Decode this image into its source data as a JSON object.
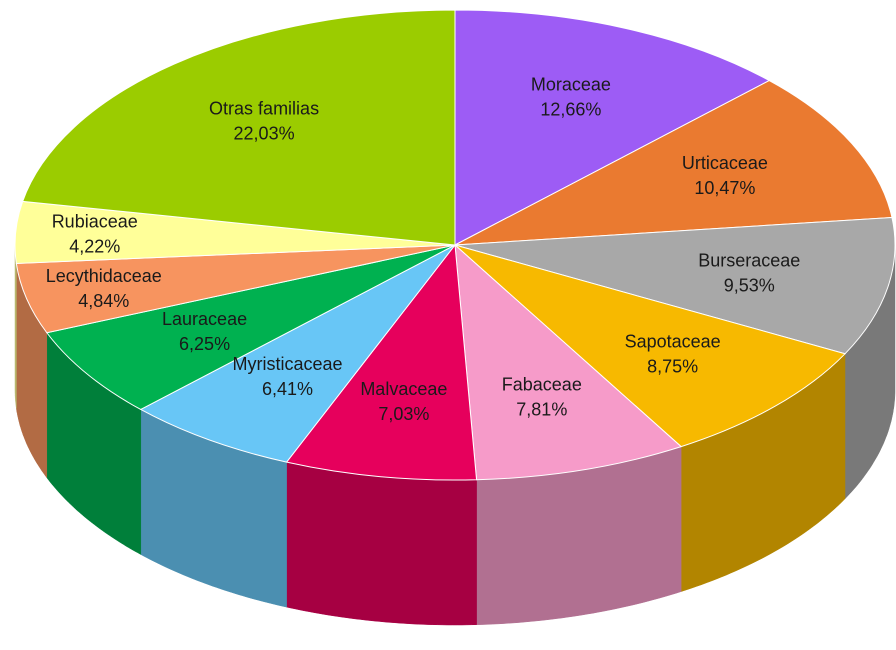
{
  "chart_data": {
    "type": "pie",
    "categories": [
      "Moraceae",
      "Urticaceae",
      "Burseraceae",
      "Sapotaceae",
      "Fabaceae",
      "Malvaceae",
      "Myristicaceae",
      "Lauraceae",
      "Lecythidaceae",
      "Rubiaceae",
      "Otras familias"
    ],
    "values": [
      12.66,
      10.47,
      9.53,
      8.75,
      7.81,
      7.03,
      6.41,
      6.25,
      4.84,
      4.22,
      22.03
    ],
    "value_labels": [
      "12,66%",
      "10,47%",
      "9,53%",
      "8,75%",
      "7,81%",
      "7,03%",
      "6,41%",
      "6,25%",
      "4,84%",
      "4,22%",
      "22,03%"
    ],
    "colors": [
      "#9d5cf5",
      "#ea7a30",
      "#a8a8a8",
      "#f7b900",
      "#f69bc9",
      "#e6005c",
      "#68c6f6",
      "#00b150",
      "#f7945f",
      "#ffff99",
      "#9bcc00"
    ]
  }
}
